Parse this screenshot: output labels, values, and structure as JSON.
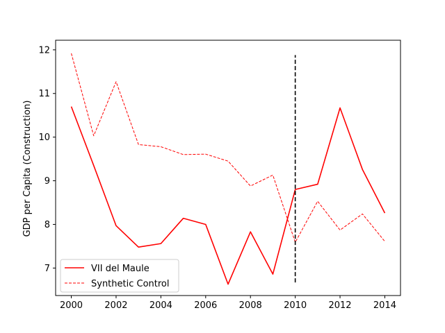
{
  "chart_data": {
    "type": "line",
    "title": "",
    "xlabel": "",
    "ylabel": "GDP per Capita (Construction)",
    "xlim": [
      1999.3,
      2014.7
    ],
    "ylim": [
      6.37,
      12.22
    ],
    "xticks": [
      2000,
      2002,
      2004,
      2006,
      2008,
      2010,
      2012,
      2014
    ],
    "yticks": [
      7,
      8,
      9,
      10,
      11,
      12
    ],
    "x": [
      2000,
      2001,
      2002,
      2003,
      2004,
      2005,
      2006,
      2007,
      2008,
      2009,
      2010,
      2011,
      2012,
      2013,
      2014
    ],
    "series": [
      {
        "name": "VII del Maule",
        "color": "#ff0000",
        "style": "solid",
        "values": [
          10.7,
          9.35,
          7.97,
          7.48,
          7.56,
          8.14,
          8.0,
          6.63,
          7.83,
          6.86,
          8.8,
          8.92,
          10.67,
          9.26,
          8.26
        ]
      },
      {
        "name": "Synthetic Control",
        "color": "#ff0000",
        "style": "dashed",
        "values": [
          11.92,
          10.03,
          11.27,
          9.83,
          9.78,
          9.6,
          9.61,
          9.45,
          8.88,
          9.13,
          7.59,
          8.53,
          7.87,
          8.24,
          7.61
        ]
      }
    ],
    "vline": {
      "x": 2010,
      "ymin": 6.67,
      "ymax": 11.88,
      "color": "#000000",
      "style": "dashed"
    },
    "legend_position": "lower-left",
    "grid": false
  }
}
